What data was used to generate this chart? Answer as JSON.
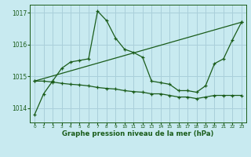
{
  "title": "Graphe pression niveau de la mer (hPa)",
  "bg_color": "#c8eaf0",
  "grid_color": "#aacfda",
  "line_color": "#1a5c1a",
  "ylim": [
    1013.55,
    1017.25
  ],
  "yticks": [
    1014,
    1015,
    1016,
    1017
  ],
  "xlim": [
    -0.5,
    23.5
  ],
  "xticks": [
    0,
    1,
    2,
    3,
    4,
    5,
    6,
    7,
    8,
    9,
    10,
    11,
    12,
    13,
    14,
    15,
    16,
    17,
    18,
    19,
    20,
    21,
    22,
    23
  ],
  "line1_x": [
    0,
    1,
    2,
    3,
    4,
    5,
    6,
    7,
    8,
    9,
    10,
    11,
    12,
    13,
    14,
    15,
    16,
    17,
    18,
    19,
    20,
    21,
    22,
    23
  ],
  "line1_y": [
    1013.8,
    1014.45,
    1014.85,
    1015.25,
    1015.45,
    1015.5,
    1015.55,
    1017.05,
    1016.75,
    1016.2,
    1015.85,
    1015.75,
    1015.6,
    1014.85,
    1014.8,
    1014.75,
    1014.55,
    1014.55,
    1014.5,
    1014.7,
    1015.4,
    1015.55,
    1016.15,
    1016.7
  ],
  "line2_x": [
    0,
    23
  ],
  "line2_y": [
    1014.85,
    1016.7
  ],
  "line3_x": [
    0,
    1,
    2,
    3,
    4,
    5,
    6,
    7,
    8,
    9,
    10,
    11,
    12,
    13,
    14,
    15,
    16,
    17,
    18,
    19,
    20,
    21,
    22,
    23
  ],
  "line3_y": [
    1014.85,
    1014.85,
    1014.82,
    1014.78,
    1014.75,
    1014.73,
    1014.7,
    1014.65,
    1014.62,
    1014.6,
    1014.55,
    1014.52,
    1014.5,
    1014.45,
    1014.45,
    1014.4,
    1014.35,
    1014.35,
    1014.3,
    1014.35,
    1014.4,
    1014.4,
    1014.4,
    1014.4
  ]
}
